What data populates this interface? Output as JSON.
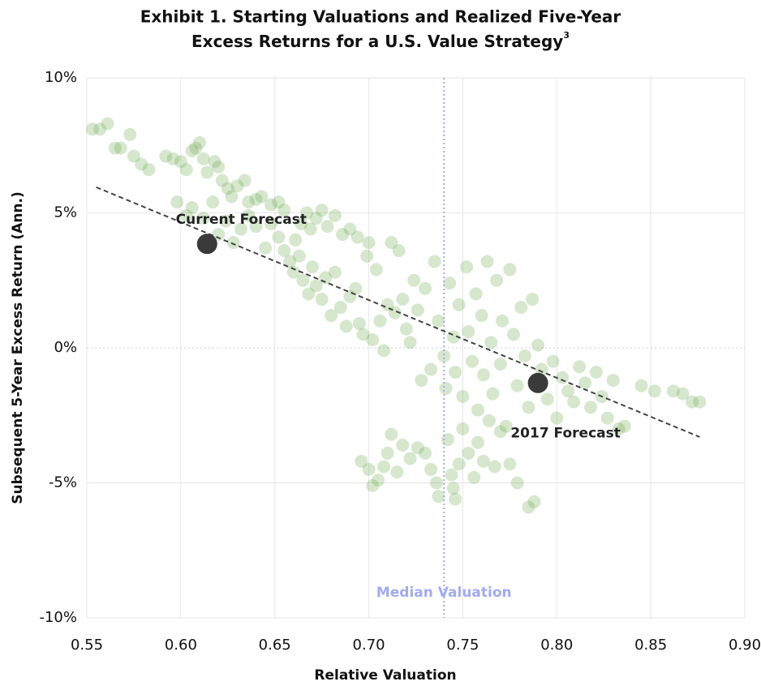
{
  "chart_data": {
    "type": "scatter",
    "title": [
      "Exhibit 1. Starting Valuations and Realized Five-Year",
      "Excess Returns for a U.S. Value Strategy"
    ],
    "title_footnote": "3",
    "xlabel": "Relative Valuation",
    "ylabel": "Subsequent 5-Year Excess Return (Ann.)",
    "color": "#6aa84f",
    "grid": true,
    "xlim": [
      0.55,
      0.9
    ],
    "ylim": [
      -10,
      10
    ],
    "xticks": [
      0.55,
      {
        "value": 0.6,
        "label": "0.60"
      },
      0.65,
      {
        "value": 0.7,
        "label": "0.70"
      },
      0.75,
      {
        "value": 0.8,
        "label": "0.80"
      },
      0.85,
      {
        "value": 0.9,
        "label": "0.90"
      }
    ],
    "yticks": [
      {
        "value": -10,
        "label": "-10%"
      },
      {
        "value": -5,
        "label": "-5%"
      },
      {
        "value": 0,
        "label": "0%"
      },
      {
        "value": 5,
        "label": "5%"
      },
      {
        "value": 10,
        "label": "10%"
      }
    ],
    "x": [
      0.553,
      0.557,
      0.561,
      0.565,
      0.568,
      0.573,
      0.575,
      0.579,
      0.583,
      0.592,
      0.596,
      0.6,
      0.603,
      0.606,
      0.608,
      0.61,
      0.612,
      0.614,
      0.618,
      0.62,
      0.622,
      0.625,
      0.627,
      0.63,
      0.634,
      0.636,
      0.64,
      0.643,
      0.648,
      0.652,
      0.655,
      0.598,
      0.603,
      0.606,
      0.612,
      0.617,
      0.62,
      0.624,
      0.628,
      0.632,
      0.636,
      0.64,
      0.645,
      0.648,
      0.652,
      0.655,
      0.658,
      0.661,
      0.664,
      0.667,
      0.669,
      0.672,
      0.675,
      0.678,
      0.682,
      0.686,
      0.69,
      0.694,
      0.66,
      0.663,
      0.665,
      0.668,
      0.67,
      0.672,
      0.675,
      0.677,
      0.68,
      0.682,
      0.685,
      0.688,
      0.69,
      0.693,
      0.695,
      0.697,
      0.699,
      0.7,
      0.702,
      0.704,
      0.706,
      0.708,
      0.71,
      0.712,
      0.714,
      0.716,
      0.718,
      0.72,
      0.722,
      0.724,
      0.726,
      0.728,
      0.73,
      0.733,
      0.735,
      0.737,
      0.74,
      0.741,
      0.743,
      0.745,
      0.746,
      0.748,
      0.75,
      0.752,
      0.753,
      0.755,
      0.757,
      0.758,
      0.76,
      0.761,
      0.763,
      0.765,
      0.766,
      0.768,
      0.77,
      0.771,
      0.773,
      0.775,
      0.777,
      0.779,
      0.781,
      0.783,
      0.785,
      0.787,
      0.79,
      0.792,
      0.795,
      0.798,
      0.8,
      0.803,
      0.806,
      0.809,
      0.812,
      0.815,
      0.818,
      0.821,
      0.824,
      0.827,
      0.83,
      0.833,
      0.836,
      0.845,
      0.852,
      0.862,
      0.867,
      0.872,
      0.876,
      0.696,
      0.7,
      0.702,
      0.705,
      0.708,
      0.71,
      0.712,
      0.715,
      0.718,
      0.722,
      0.726,
      0.73,
      0.733,
      0.736,
      0.737,
      0.742,
      0.744,
      0.745,
      0.746,
      0.748,
      0.75,
      0.753,
      0.756,
      0.758,
      0.761,
      0.764,
      0.767,
      0.77,
      0.775,
      0.779,
      0.785,
      0.788
    ],
    "values": [
      8.1,
      8.1,
      8.3,
      7.4,
      7.4,
      7.9,
      7.1,
      6.8,
      6.6,
      7.1,
      7.0,
      6.9,
      6.6,
      7.3,
      7.4,
      7.6,
      7.0,
      6.5,
      6.9,
      6.7,
      6.2,
      5.9,
      5.6,
      6.0,
      6.2,
      5.4,
      5.5,
      5.6,
      5.3,
      5.4,
      5.1,
      5.4,
      4.9,
      5.2,
      4.8,
      5.4,
      4.2,
      4.7,
      3.9,
      4.4,
      4.9,
      4.5,
      3.7,
      4.6,
      4.1,
      3.6,
      3.2,
      4.0,
      4.6,
      5.0,
      4.4,
      4.8,
      5.1,
      4.5,
      4.9,
      4.2,
      4.4,
      4.1,
      2.8,
      3.4,
      2.5,
      2.0,
      3.0,
      2.3,
      1.8,
      2.6,
      1.2,
      2.8,
      1.5,
      0.8,
      1.9,
      2.2,
      0.9,
      0.5,
      3.4,
      3.9,
      0.3,
      2.9,
      1.0,
      -0.1,
      1.6,
      3.9,
      1.3,
      3.6,
      1.8,
      0.7,
      0.2,
      2.5,
      1.4,
      -1.2,
      2.2,
      -0.8,
      3.2,
      1.0,
      -0.3,
      -1.5,
      2.4,
      0.4,
      -0.9,
      1.6,
      -1.8,
      3.0,
      0.6,
      -0.5,
      2.0,
      -2.3,
      1.2,
      -1.0,
      3.2,
      0.2,
      -1.7,
      2.5,
      -0.6,
      1.0,
      -2.9,
      2.9,
      0.5,
      -1.4,
      1.5,
      -0.3,
      -2.2,
      1.8,
      0.1,
      -0.8,
      -1.9,
      -0.5,
      -2.6,
      -1.1,
      -1.6,
      -2.0,
      -0.7,
      -1.3,
      -2.2,
      -0.9,
      -1.8,
      -2.6,
      -1.2,
      -3.0,
      -2.9,
      -1.4,
      -1.6,
      -1.6,
      -1.7,
      -2.0,
      -2.0,
      -4.2,
      -4.5,
      -5.1,
      -4.9,
      -4.4,
      -3.9,
      -3.2,
      -4.6,
      -3.6,
      -4.1,
      -3.7,
      -3.9,
      -4.5,
      -5.0,
      -5.5,
      -3.4,
      -4.7,
      -5.2,
      -5.6,
      -4.3,
      -3.0,
      -3.9,
      -4.8,
      -3.5,
      -4.2,
      -2.7,
      -4.4,
      -3.1,
      -4.3,
      -5.0,
      -5.9,
      -5.7
    ],
    "trendline": {
      "x": [
        0.555,
        0.876
      ],
      "values": [
        5.95,
        -3.3
      ],
      "color": "#444444"
    },
    "median_line": {
      "label": "Median Valuation",
      "x": 0.74,
      "color": "#a3aaf2"
    },
    "annotations": [
      {
        "text": "Current Forecast",
        "x": 0.614,
        "y": 3.85
      },
      {
        "text": "2017 Forecast",
        "x": 0.79,
        "y": -1.3
      }
    ],
    "annotation_color": "#3a3a3a"
  }
}
